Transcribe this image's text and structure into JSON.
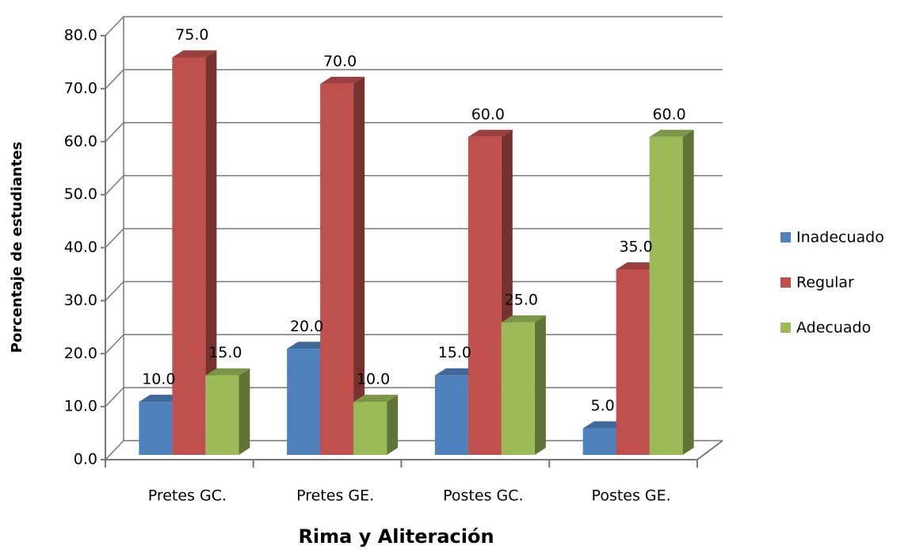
{
  "chart_data": {
    "type": "bar3d",
    "x_label": "Rima y Aliteración",
    "y_label": "Porcentaje de estudiantes",
    "categories": [
      "Pretes GC.",
      "Pretes GE.",
      "Postes GC.",
      "Postes GE."
    ],
    "series": [
      {
        "name": "Inadecuado",
        "color": "#4f81bd",
        "values": [
          10,
          20,
          15,
          5
        ],
        "value_labels": [
          "10.0",
          "20.0",
          "15.0",
          "5.0"
        ]
      },
      {
        "name": "Regular",
        "color": "#c0504d",
        "values": [
          75,
          70,
          60,
          35
        ],
        "value_labels": [
          "75.0",
          "70.0",
          "60.0",
          "35.0"
        ]
      },
      {
        "name": "Adecuado",
        "color": "#9bbb59",
        "values": [
          15,
          10,
          25,
          60
        ],
        "value_labels": [
          "15.0",
          "10.0",
          "25.0",
          "60.0"
        ]
      }
    ],
    "ylim": [
      0,
      80
    ],
    "yticks": [
      {
        "value": 0,
        "label": "0.0"
      },
      {
        "value": 10,
        "label": "10.0"
      },
      {
        "value": 20,
        "label": "20.0"
      },
      {
        "value": 30,
        "label": "30.0"
      },
      {
        "value": 40,
        "label": "40.0"
      },
      {
        "value": 50,
        "label": "50.0"
      },
      {
        "value": 60,
        "label": "60.0"
      },
      {
        "value": 70,
        "label": "70.0"
      },
      {
        "value": 80,
        "label": "80.0"
      }
    ],
    "grid": true,
    "legend": "right"
  }
}
